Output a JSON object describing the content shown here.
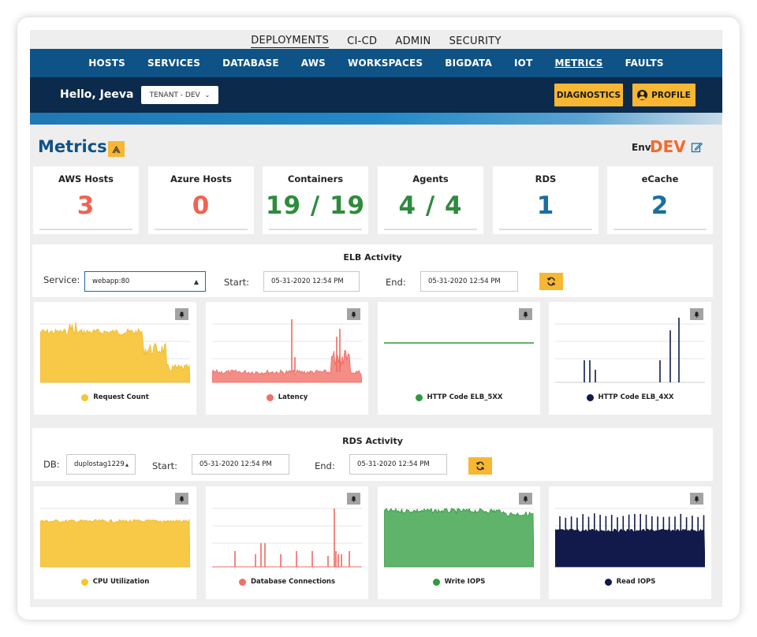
{
  "nav": {
    "top": [
      "DEPLOYMENTS",
      "CI-CD",
      "ADMIN",
      "SECURITY"
    ],
    "sub": [
      "HOSTS",
      "SERVICES",
      "DATABASE",
      "AWS",
      "WORKSPACES",
      "BIGDATA",
      "IOT",
      "METRICS",
      "FAULTS"
    ],
    "active_sub": "METRICS"
  },
  "header": {
    "greeting": "Hello, Jeeva",
    "tenant": "TENANT - DEV",
    "diagnostics_label": "DIAGNOSTICS",
    "profile_label": "PROFILE"
  },
  "page": {
    "title": "Metrics",
    "env_label": "Env:",
    "env_value": "DEV"
  },
  "stats": [
    {
      "label": "AWS Hosts",
      "value": "3",
      "color": "#ef6352"
    },
    {
      "label": "Azure Hosts",
      "value": "0",
      "color": "#ef6352"
    },
    {
      "label": "Containers",
      "value": "19 / 19",
      "color": "#2e8b3e"
    },
    {
      "label": "Agents",
      "value": "4 / 4",
      "color": "#2e8b3e"
    },
    {
      "label": "RDS",
      "value": "1",
      "color": "#1a6ea0"
    },
    {
      "label": "eCache",
      "value": "2",
      "color": "#1a6ea0"
    }
  ],
  "elb": {
    "title": "ELB Activity",
    "service_label": "Service:",
    "service_value": "webapp:80",
    "start_label": "Start:",
    "start_value": "05-31-2020 12:54 PM",
    "end_label": "End:",
    "end_value": "05-31-2020 12:54 PM",
    "charts": [
      {
        "legend": "Request Count",
        "color": "#f7c52f"
      },
      {
        "legend": "Latency",
        "color": "#f0706a"
      },
      {
        "legend": "HTTP Code ELB_5XX",
        "color": "#2f9a3f"
      },
      {
        "legend": "HTTP Code ELB_4XX",
        "color": "#111a4a"
      }
    ]
  },
  "rds": {
    "title": "RDS Activity",
    "db_label": "DB:",
    "db_value": "duplostag1229",
    "start_label": "Start:",
    "start_value": "05-31-2020 12:54 PM",
    "end_label": "End:",
    "end_value": "05-31-2020 12:54 PM",
    "charts": [
      {
        "legend": "CPU Utilization",
        "color": "#f7c52f"
      },
      {
        "legend": "Database Connections",
        "color": "#f0706a"
      },
      {
        "legend": "Write IOPS",
        "color": "#2f9a3f"
      },
      {
        "legend": "Read IOPS",
        "color": "#111a4a"
      }
    ]
  },
  "icons": {
    "bell": "bell-icon",
    "refresh": "refresh-icon",
    "edit": "edit-icon",
    "profile": "user-circle-icon",
    "title_badge": "signal-icon"
  }
}
